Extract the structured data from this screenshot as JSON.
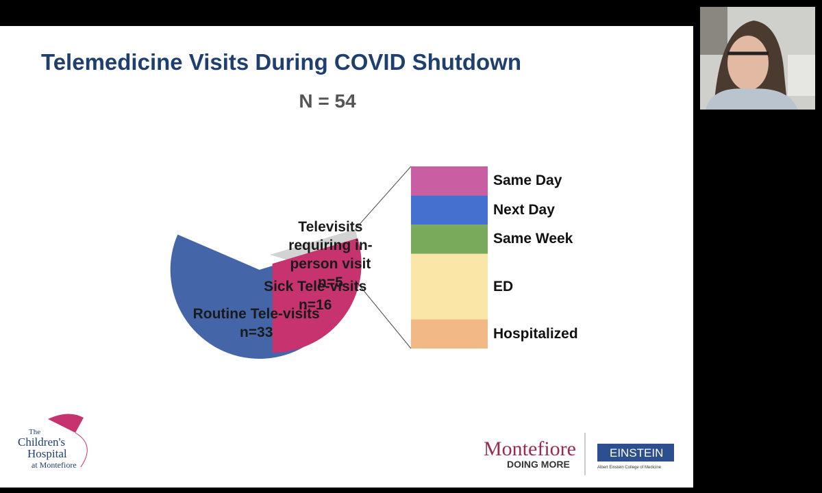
{
  "chart_data": {
    "type": "pie-of-bar",
    "title": "Telemedicine Visits During COVID Shutdown",
    "subtitle": "N = 54",
    "categories": [
      "Sick Tele-visits",
      "Routine Tele-visits",
      "Televisits requiring in-person visit"
    ],
    "values": [
      16,
      33,
      5
    ],
    "value_labels": [
      "n=16",
      "n=33",
      "n=5"
    ],
    "colors": [
      "#c7336f",
      "#4466a8",
      "#d3d3d3"
    ],
    "breakdown": {
      "categories": [
        "Same Day",
        "Next Day",
        "Same Week",
        "ED",
        "Hospitalized"
      ],
      "values": [
        0.8,
        0.8,
        0.8,
        1.8,
        0.8
      ],
      "colors": [
        "#c95ea3",
        "#4670cf",
        "#79a95a",
        "#fae7a7",
        "#f2b886"
      ]
    }
  },
  "logos": {
    "childrens": [
      "The",
      "Children's",
      "Hospital",
      "at Montefiore"
    ],
    "montefiore": "Montefiore",
    "tagline": "DOING MORE",
    "einstein": "EINSTEIN",
    "einstein_sub": "Albert Einstein College of Medicine"
  }
}
